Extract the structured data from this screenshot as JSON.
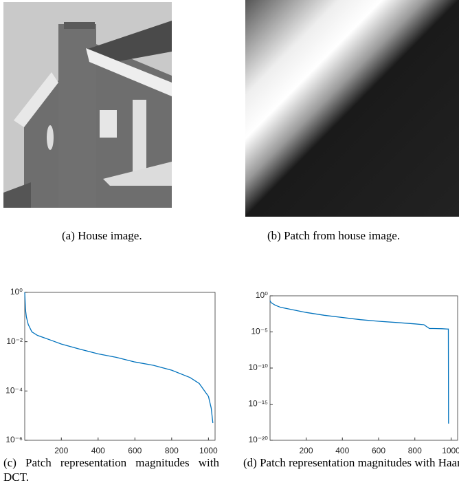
{
  "captions": {
    "a": "(a) House image.",
    "b": "(b) Patch from house image.",
    "c": "(c) Patch representation magnitudes with DCT.",
    "d": "(d) Patch representation magnitudes with Haar."
  },
  "chart_data": [
    {
      "type": "line",
      "log_y": true,
      "color": "#0072bd",
      "x": [
        1,
        5,
        10,
        20,
        40,
        70,
        100,
        150,
        200,
        300,
        400,
        500,
        600,
        700,
        800,
        900,
        950,
        1000,
        1015,
        1024
      ],
      "values": [
        1,
        0.2,
        0.1,
        0.05,
        0.025,
        0.018,
        0.015,
        0.011,
        0.008,
        0.005,
        0.0032,
        0.0023,
        0.0015,
        0.0011,
        0.0007,
        0.00035,
        0.0002,
        6e-05,
        2e-05,
        5e-06
      ],
      "xlim": [
        1,
        1036
      ],
      "ylim": [
        1e-06,
        1
      ],
      "xticks": [
        200,
        400,
        600,
        800,
        1000
      ],
      "yticks": [
        {
          "value": 1,
          "label": "10⁰"
        },
        {
          "value": 0.01,
          "label": "10⁻²"
        },
        {
          "value": 0.0001,
          "label": "10⁻⁴"
        },
        {
          "value": 1e-06,
          "label": "10⁻⁶"
        }
      ]
    },
    {
      "type": "line",
      "log_y": true,
      "color": "#0072bd",
      "x": [
        1,
        3,
        10,
        30,
        60,
        100,
        200,
        300,
        400,
        500,
        600,
        700,
        800,
        850,
        880,
        900,
        950,
        980,
        985,
        986
      ],
      "values": [
        0.22,
        0.16,
        0.1,
        0.05,
        0.025,
        0.016,
        0.005,
        0.002,
        0.001,
        0.0005,
        0.0003,
        0.0002,
        0.00013,
        0.0001,
        3e-05,
        3e-05,
        2.8e-05,
        2.5e-05,
        2.5e-05,
        2e-18
      ],
      "xlim": [
        1,
        1036
      ],
      "ylim": [
        1e-20,
        1
      ],
      "xticks": [
        200,
        400,
        600,
        800,
        1000
      ],
      "yticks": [
        {
          "value": 1,
          "label": "10⁰"
        },
        {
          "value": 1e-05,
          "label": "10⁻⁵"
        },
        {
          "value": 1e-10,
          "label": "10⁻¹⁰"
        },
        {
          "value": 1e-15,
          "label": "10⁻¹⁵"
        },
        {
          "value": 1e-20,
          "label": "10⁻²⁰"
        }
      ]
    }
  ]
}
